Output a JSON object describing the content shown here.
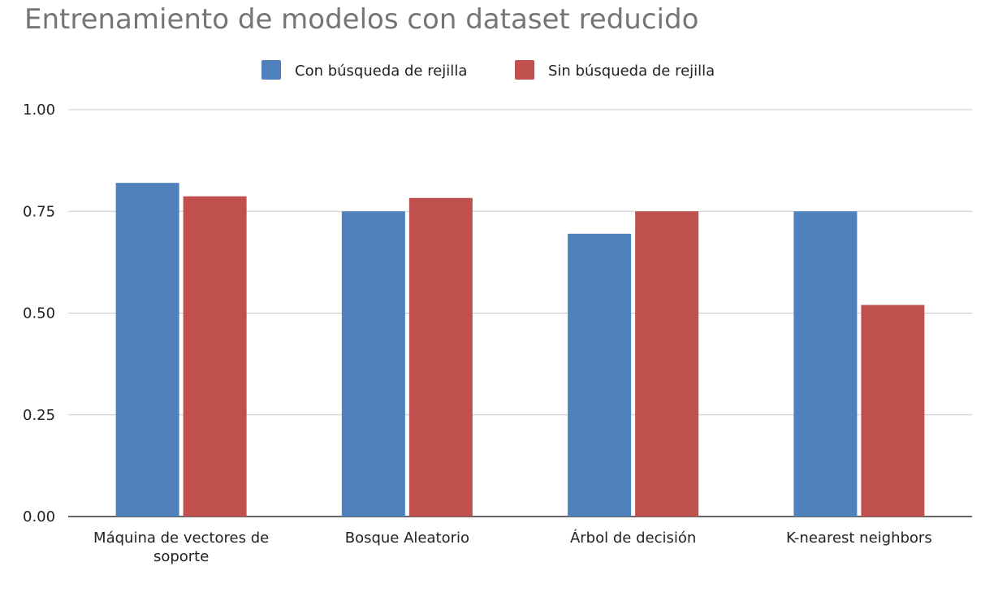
{
  "chart_data": {
    "type": "bar",
    "title": "Entrenamiento de modelos con dataset reducido",
    "categories": [
      [
        "Máquina de vectores de",
        "soporte"
      ],
      [
        "Bosque Aleatorio"
      ],
      [
        "Árbol de decisión"
      ],
      [
        "K-nearest neighbors"
      ]
    ],
    "series": [
      {
        "name": "Con búsqueda de rejilla",
        "color": "#4f81bd",
        "values": [
          0.82,
          0.75,
          0.695,
          0.75
        ]
      },
      {
        "name": "Sin búsqueda de rejilla",
        "color": "#c0504d",
        "values": [
          0.787,
          0.783,
          0.75,
          0.52
        ]
      }
    ],
    "yticks": [
      "0.00",
      "0.25",
      "0.50",
      "0.75",
      "1.00"
    ],
    "ylim": [
      0,
      1
    ],
    "xlabel": "",
    "ylabel": "",
    "grid": true,
    "legend_position": "top-center"
  }
}
